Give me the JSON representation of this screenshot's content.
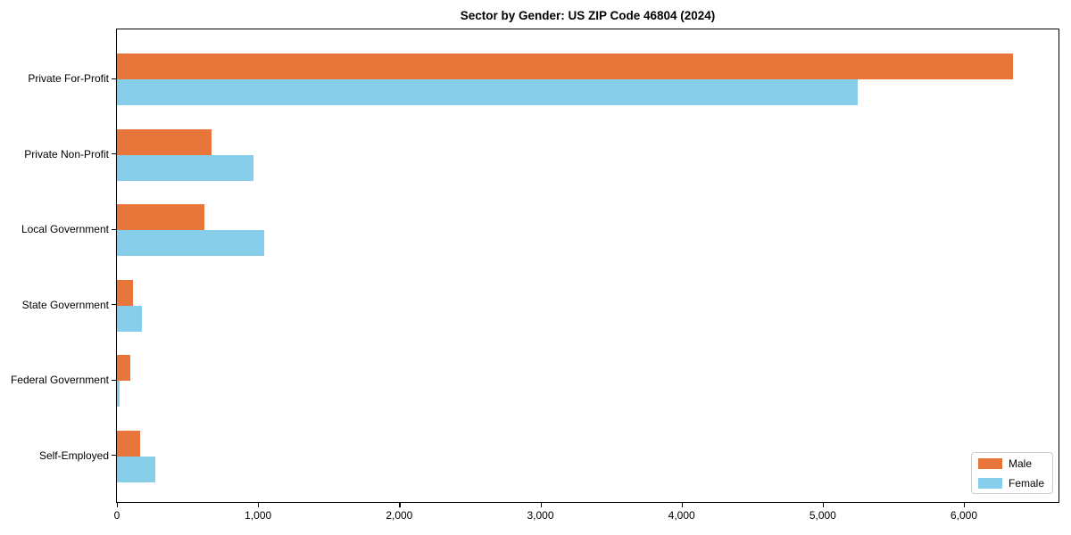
{
  "chart_data": {
    "type": "bar",
    "orientation": "horizontal",
    "title": "Sector by Gender: US ZIP Code 46804 (2024)",
    "categories": [
      "Private For-Profit",
      "Private Non-Profit",
      "Local Government",
      "State Government",
      "Federal Government",
      "Self-Employed"
    ],
    "series": [
      {
        "name": "Male",
        "color": "#e8763b",
        "values": [
          6350,
          670,
          620,
          115,
          95,
          165
        ]
      },
      {
        "name": "Female",
        "color": "#87ceeb",
        "values": [
          5250,
          965,
          1045,
          175,
          20,
          270
        ]
      }
    ],
    "xlabel": "",
    "ylabel": "",
    "xlim": [
      0,
      6680
    ],
    "xticks": [
      0,
      1000,
      2000,
      3000,
      4000,
      5000,
      6000
    ],
    "xtick_labels": [
      "0",
      "1,000",
      "2,000",
      "3,000",
      "4,000",
      "5,000",
      "6,000"
    ],
    "grid": false,
    "legend": {
      "position": "lower-right",
      "entries": [
        {
          "label": "Male",
          "color": "#e8763b"
        },
        {
          "label": "Female",
          "color": "#87ceeb"
        }
      ]
    }
  }
}
